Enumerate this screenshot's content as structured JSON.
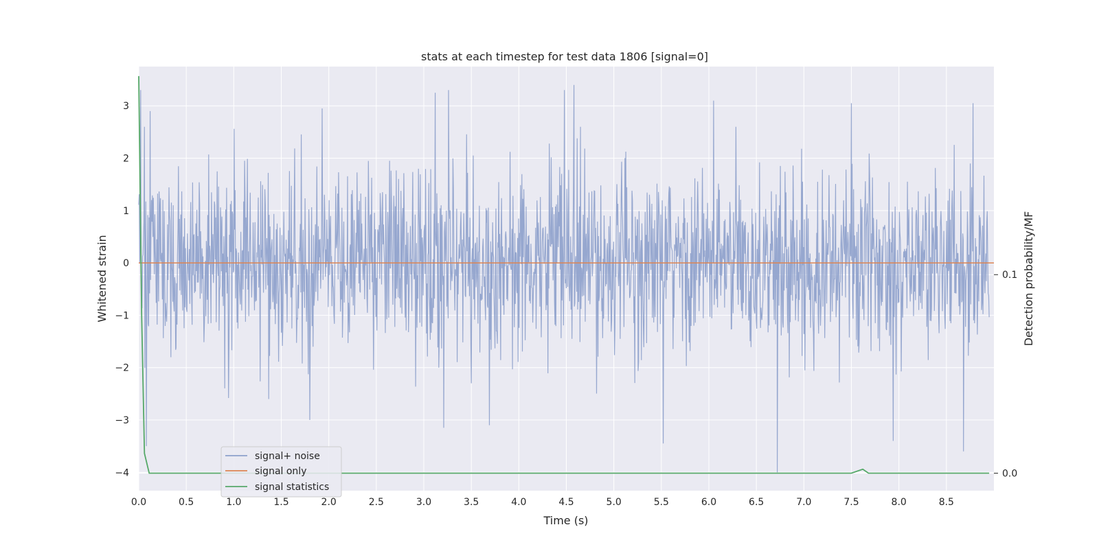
{
  "chart_data": {
    "type": "line",
    "title": "stats at each timestep for test data 1806 [signal=0]",
    "xlabel": "Time (s)",
    "ylabel": "Whitened strain",
    "y2label": "Detection probability/MF",
    "xlim": [
      0.0,
      9.0
    ],
    "ylim": [
      -4.35,
      3.75
    ],
    "y2lim": [
      -0.0088,
      0.2048
    ],
    "xticks": [
      "0.0",
      "0.5",
      "1.0",
      "1.5",
      "2.0",
      "2.5",
      "3.0",
      "3.5",
      "4.0",
      "4.5",
      "5.0",
      "5.5",
      "6.0",
      "6.5",
      "7.0",
      "7.5",
      "8.0",
      "8.5"
    ],
    "yticks": [
      "3",
      "2",
      "1",
      "0",
      "−1",
      "−2",
      "−3",
      "−4"
    ],
    "y2ticks": [
      "0.1",
      "0.0"
    ],
    "grid": true,
    "legend_position": "lower-left",
    "series": [
      {
        "name": "signal+ noise",
        "axis": "left",
        "color": "#8da0cb",
        "description_values": "dense noise, roughly ±2 with spikes up to ~3.4 and down to ~-4.0",
        "peak_points": [
          {
            "x": 0.02,
            "y": 3.3
          },
          {
            "x": 0.12,
            "y": 2.9
          },
          {
            "x": 1.93,
            "y": 2.95
          },
          {
            "x": 3.12,
            "y": 3.25
          },
          {
            "x": 3.26,
            "y": 3.3
          },
          {
            "x": 4.48,
            "y": 3.3
          },
          {
            "x": 4.58,
            "y": 3.4
          },
          {
            "x": 6.05,
            "y": 3.1
          },
          {
            "x": 7.5,
            "y": 3.05
          },
          {
            "x": 8.78,
            "y": 3.05
          },
          {
            "x": 5.52,
            "y": -3.45
          },
          {
            "x": 6.72,
            "y": -4.0
          },
          {
            "x": 7.94,
            "y": -3.4
          },
          {
            "x": 8.68,
            "y": -3.6
          },
          {
            "x": 3.21,
            "y": -3.15
          },
          {
            "x": 3.69,
            "y": -3.1
          },
          {
            "x": 1.8,
            "y": -3.0
          },
          {
            "x": 0.08,
            "y": -3.5
          }
        ]
      },
      {
        "name": "signal only",
        "axis": "left",
        "color": "#dd8452",
        "x": [
          0.0,
          9.0
        ],
        "y": [
          0.0,
          0.0
        ]
      },
      {
        "name": "signal statistics",
        "axis": "right",
        "color": "#55a868",
        "x": [
          0.0,
          0.03,
          0.06,
          0.11,
          0.5,
          1.0,
          2.0,
          3.0,
          4.0,
          5.0,
          6.0,
          7.0,
          7.2,
          7.5,
          7.62,
          7.68,
          8.0,
          8.95
        ],
        "y": [
          0.2,
          0.08,
          0.01,
          0.0,
          0.0,
          0.0,
          0.0,
          0.0,
          0.0,
          0.0,
          0.0,
          0.0,
          0.0,
          0.0,
          0.002,
          0.0,
          0.0,
          0.0
        ]
      }
    ]
  }
}
